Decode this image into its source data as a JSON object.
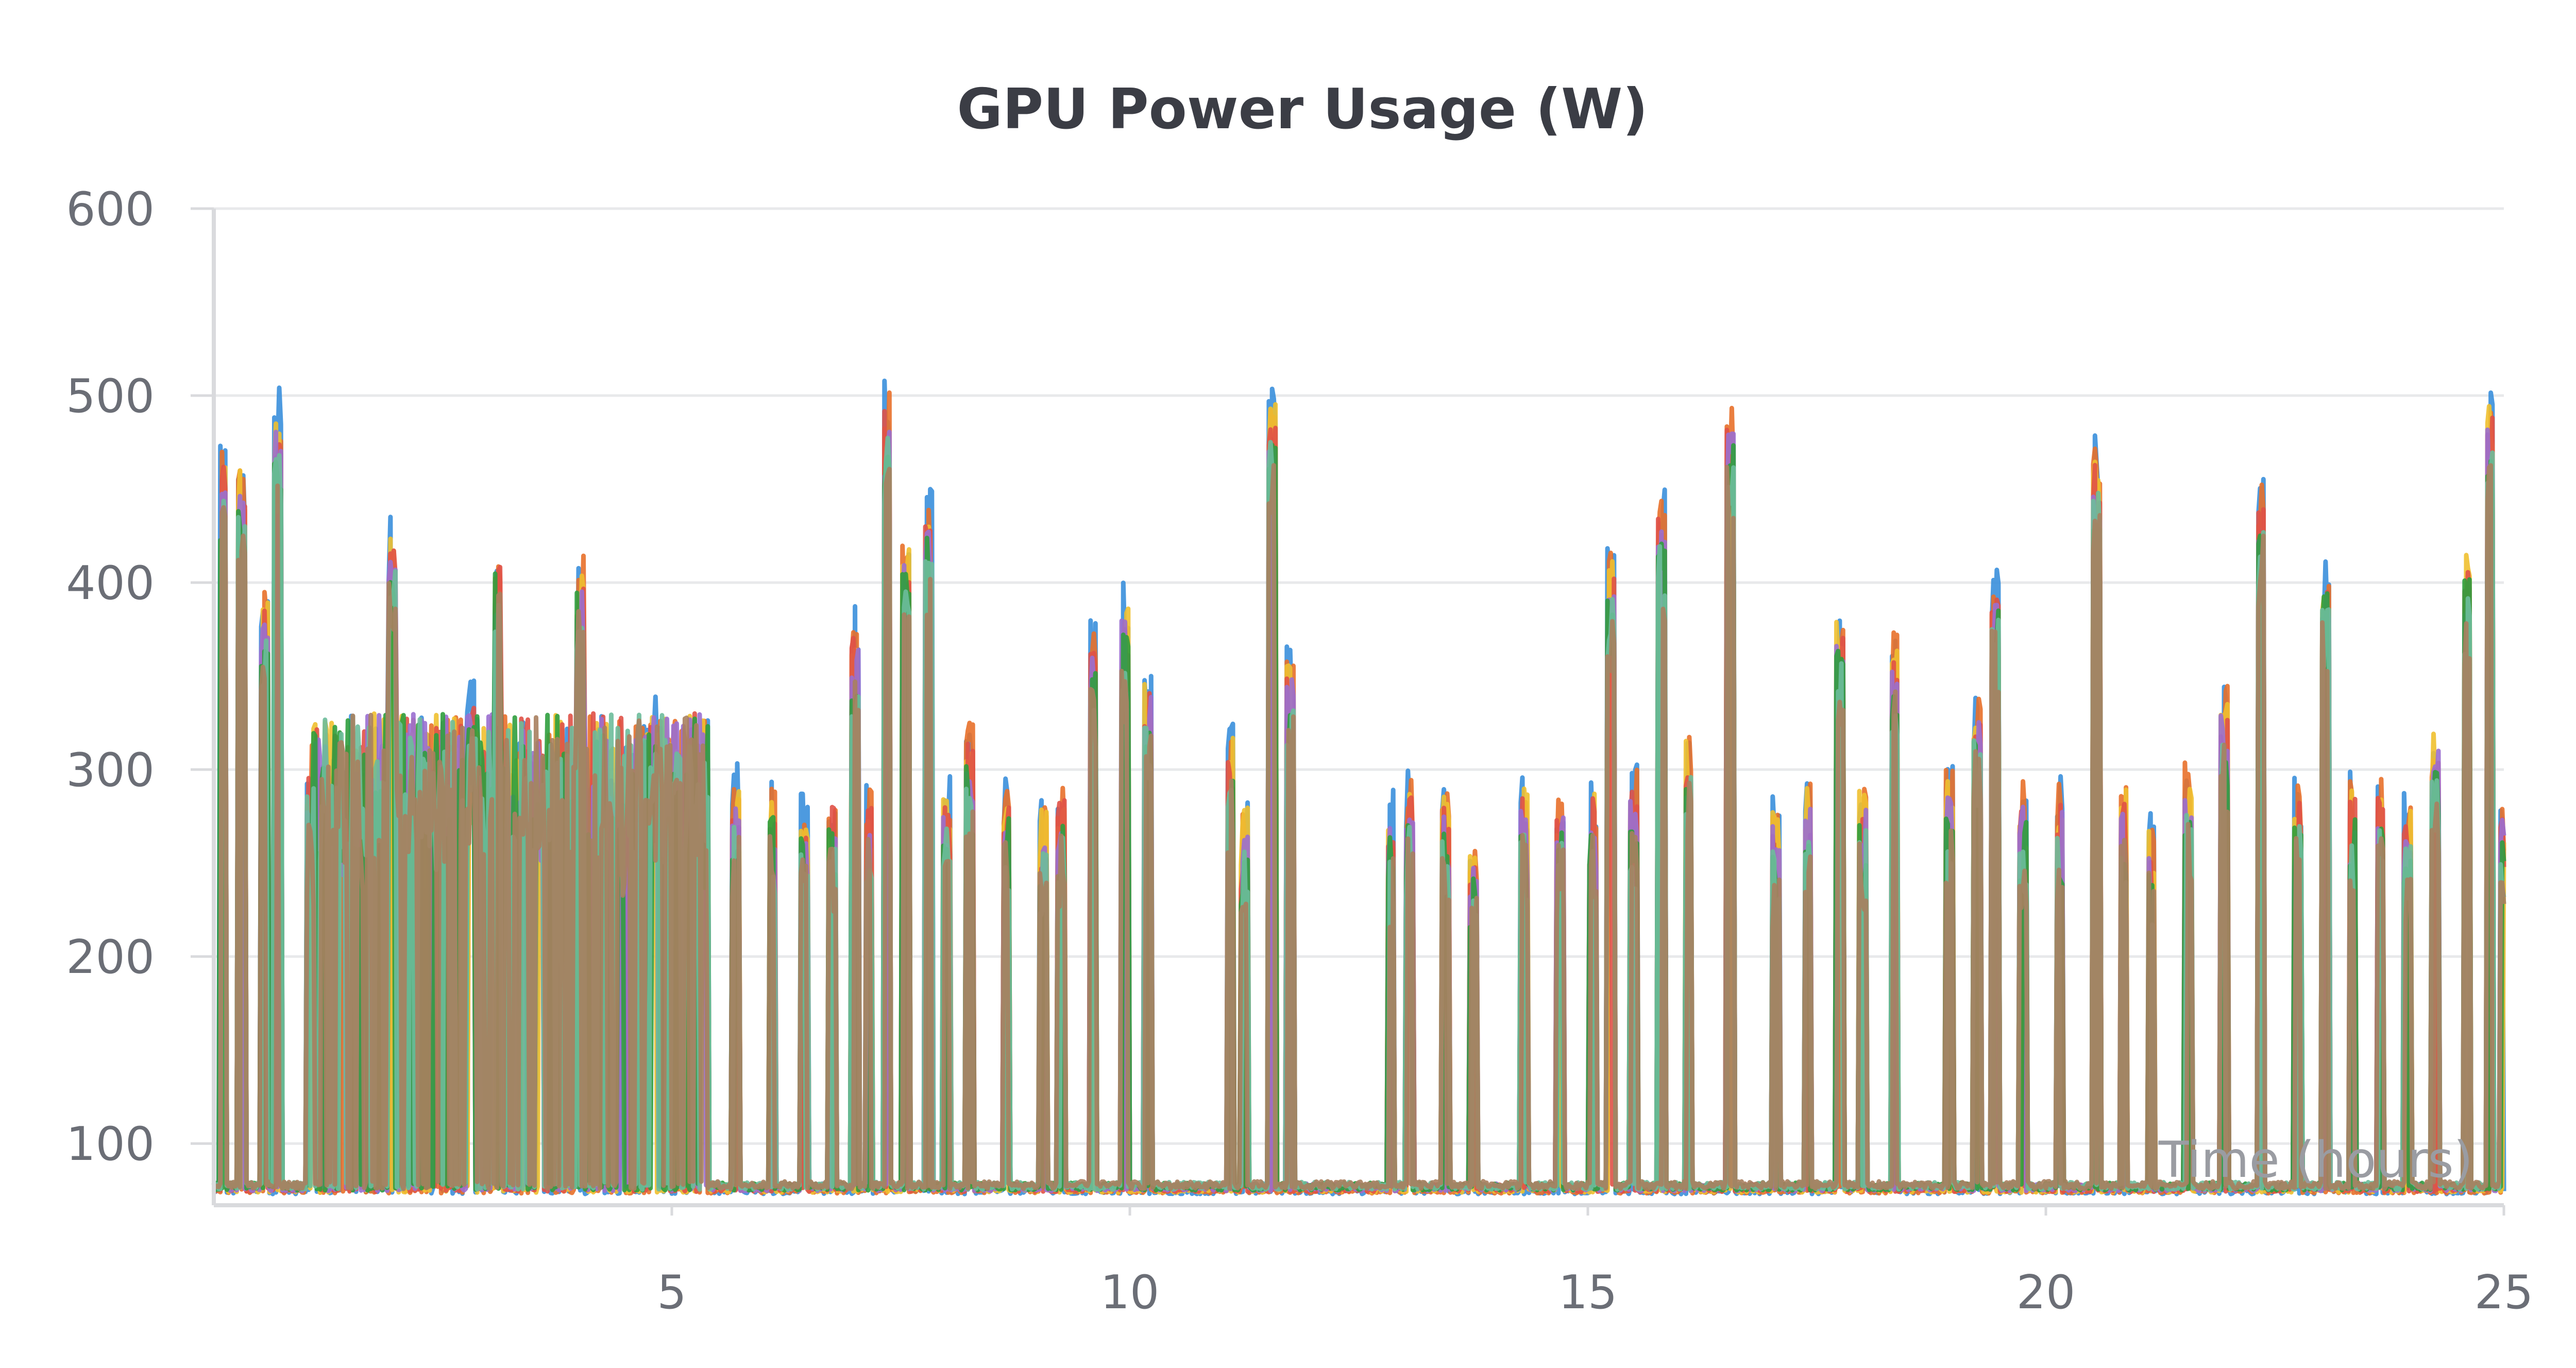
{
  "chart_data": {
    "type": "line",
    "title": "GPU Power Usage (W)",
    "xlabel": "Time (hours)",
    "ylabel": "",
    "xlim": [
      0,
      25
    ],
    "ylim": [
      67,
      600
    ],
    "x_ticks": [
      5,
      10,
      15,
      20,
      25
    ],
    "y_ticks": [
      100,
      200,
      300,
      400,
      500,
      600
    ],
    "grid": true,
    "legend": "none",
    "baseline_w": 75,
    "series_colors": [
      "#3a8fdb",
      "#e8702a",
      "#f0c02f",
      "#e05147",
      "#9a6fd0",
      "#2f9e3e",
      "#6dbd9b",
      "#a8805f"
    ],
    "spikes": [
      [
        0.1,
        480
      ],
      [
        0.3,
        470
      ],
      [
        0.55,
        400
      ],
      [
        0.7,
        505
      ],
      [
        1.05,
        300
      ],
      [
        1.4,
        300
      ],
      [
        1.6,
        300
      ],
      [
        1.95,
        440
      ],
      [
        2.45,
        315
      ],
      [
        2.8,
        350
      ],
      [
        3.1,
        430
      ],
      [
        3.55,
        300
      ],
      [
        4.0,
        420
      ],
      [
        4.45,
        300
      ],
      [
        4.8,
        340
      ],
      [
        5.35,
        300
      ],
      [
        5.7,
        305
      ],
      [
        6.1,
        300
      ],
      [
        6.45,
        290
      ],
      [
        6.75,
        295
      ],
      [
        7.0,
        390
      ],
      [
        7.15,
        300
      ],
      [
        7.35,
        510
      ],
      [
        7.55,
        430
      ],
      [
        7.8,
        450
      ],
      [
        8.0,
        300
      ],
      [
        8.25,
        330
      ],
      [
        8.65,
        300
      ],
      [
        9.05,
        290
      ],
      [
        9.25,
        300
      ],
      [
        9.6,
        380
      ],
      [
        9.95,
        400
      ],
      [
        10.2,
        360
      ],
      [
        11.1,
        330
      ],
      [
        11.25,
        290
      ],
      [
        11.55,
        510
      ],
      [
        11.75,
        370
      ],
      [
        12.85,
        290
      ],
      [
        13.05,
        300
      ],
      [
        13.45,
        300
      ],
      [
        13.75,
        270
      ],
      [
        14.3,
        300
      ],
      [
        14.7,
        295
      ],
      [
        15.05,
        300
      ],
      [
        15.25,
        425
      ],
      [
        15.5,
        305
      ],
      [
        15.8,
        450
      ],
      [
        16.1,
        330
      ],
      [
        16.55,
        500
      ],
      [
        17.05,
        290
      ],
      [
        17.4,
        300
      ],
      [
        17.75,
        390
      ],
      [
        18.0,
        300
      ],
      [
        18.35,
        380
      ],
      [
        18.95,
        305
      ],
      [
        19.25,
        350
      ],
      [
        19.45,
        410
      ],
      [
        19.75,
        300
      ],
      [
        20.15,
        300
      ],
      [
        20.55,
        480
      ],
      [
        20.85,
        300
      ],
      [
        21.15,
        280
      ],
      [
        21.55,
        310
      ],
      [
        21.95,
        350
      ],
      [
        22.35,
        460
      ],
      [
        22.75,
        300
      ],
      [
        23.05,
        420
      ],
      [
        23.35,
        300
      ],
      [
        23.65,
        300
      ],
      [
        23.95,
        290
      ],
      [
        24.25,
        330
      ],
      [
        24.6,
        430
      ],
      [
        24.85,
        505
      ],
      [
        25.0,
        300
      ]
    ]
  }
}
